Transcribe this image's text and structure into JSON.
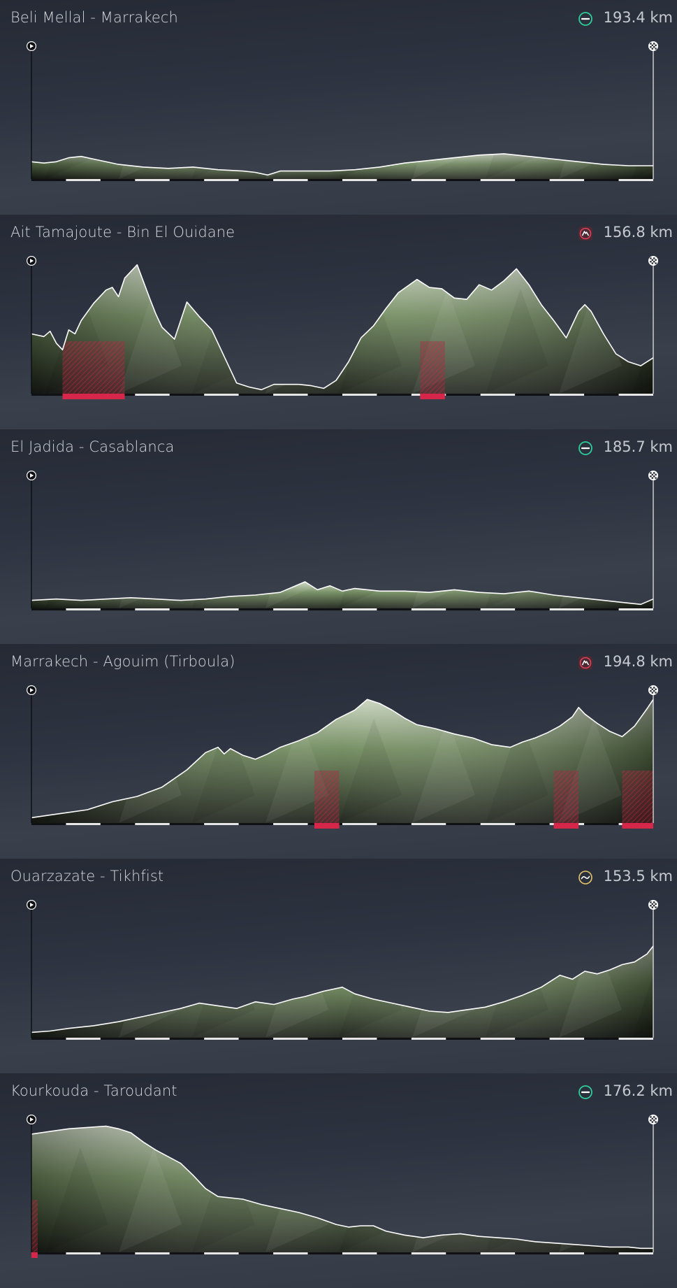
{
  "colors": {
    "background": "#2b313d",
    "flat_icon": "#2ecc9a",
    "mountain_icon": "#e0405a",
    "hilly_icon": "#e8c46a",
    "climb_marker": "#d6274a",
    "profile_top": "#c7d2bd",
    "profile_bottom": "#1c2119"
  },
  "stages": [
    {
      "name": "Beli Mellal - Marrakech",
      "distance": "193.4 km",
      "type_icon": "flat-icon",
      "climb_markers": [],
      "profile_points": [
        [
          0,
          0.13
        ],
        [
          2,
          0.12
        ],
        [
          4,
          0.13
        ],
        [
          6,
          0.16
        ],
        [
          8,
          0.17
        ],
        [
          10,
          0.15
        ],
        [
          14,
          0.11
        ],
        [
          18,
          0.09
        ],
        [
          22,
          0.08
        ],
        [
          26,
          0.09
        ],
        [
          30,
          0.07
        ],
        [
          34,
          0.06
        ],
        [
          36,
          0.05
        ],
        [
          38,
          0.03
        ],
        [
          40,
          0.06
        ],
        [
          44,
          0.06
        ],
        [
          48,
          0.06
        ],
        [
          52,
          0.07
        ],
        [
          56,
          0.09
        ],
        [
          60,
          0.12
        ],
        [
          64,
          0.14
        ],
        [
          68,
          0.16
        ],
        [
          72,
          0.18
        ],
        [
          76,
          0.19
        ],
        [
          80,
          0.17
        ],
        [
          84,
          0.15
        ],
        [
          88,
          0.13
        ],
        [
          92,
          0.11
        ],
        [
          96,
          0.1
        ],
        [
          100,
          0.1
        ]
      ]
    },
    {
      "name": "Ait Tamajoute - Bin El Ouidane",
      "distance": "156.8 km",
      "type_icon": "mountain-icon",
      "climb_markers": [
        [
          5,
          15
        ],
        [
          62.5,
          66.5
        ]
      ],
      "profile_points": [
        [
          0,
          0.45
        ],
        [
          2,
          0.43
        ],
        [
          3,
          0.47
        ],
        [
          4,
          0.38
        ],
        [
          5,
          0.33
        ],
        [
          6,
          0.48
        ],
        [
          7,
          0.45
        ],
        [
          8,
          0.55
        ],
        [
          10,
          0.68
        ],
        [
          12,
          0.78
        ],
        [
          13,
          0.8
        ],
        [
          14,
          0.73
        ],
        [
          15,
          0.87
        ],
        [
          17,
          0.97
        ],
        [
          19,
          0.72
        ],
        [
          20,
          0.6
        ],
        [
          21,
          0.5
        ],
        [
          23,
          0.41
        ],
        [
          25,
          0.69
        ],
        [
          27,
          0.58
        ],
        [
          29,
          0.48
        ],
        [
          31,
          0.28
        ],
        [
          33,
          0.08
        ],
        [
          35,
          0.05
        ],
        [
          37,
          0.03
        ],
        [
          39,
          0.07
        ],
        [
          41,
          0.07
        ],
        [
          43,
          0.07
        ],
        [
          45,
          0.06
        ],
        [
          47,
          0.04
        ],
        [
          49,
          0.1
        ],
        [
          51,
          0.24
        ],
        [
          53,
          0.42
        ],
        [
          55,
          0.51
        ],
        [
          57,
          0.64
        ],
        [
          59,
          0.76
        ],
        [
          62,
          0.86
        ],
        [
          64,
          0.8
        ],
        [
          66,
          0.79
        ],
        [
          68,
          0.72
        ],
        [
          70,
          0.71
        ],
        [
          72,
          0.82
        ],
        [
          74,
          0.78
        ],
        [
          76,
          0.85
        ],
        [
          78,
          0.94
        ],
        [
          80,
          0.82
        ],
        [
          82,
          0.67
        ],
        [
          84,
          0.55
        ],
        [
          86,
          0.42
        ],
        [
          88,
          0.62
        ],
        [
          89,
          0.67
        ],
        [
          90,
          0.62
        ],
        [
          92,
          0.45
        ],
        [
          94,
          0.3
        ],
        [
          96,
          0.24
        ],
        [
          98,
          0.21
        ],
        [
          100,
          0.27
        ]
      ]
    },
    {
      "name": "El Jadida - Casablanca",
      "distance": "185.7 km",
      "type_icon": "flat-icon",
      "climb_markers": [],
      "profile_points": [
        [
          0,
          0.06
        ],
        [
          4,
          0.07
        ],
        [
          8,
          0.06
        ],
        [
          12,
          0.07
        ],
        [
          16,
          0.08
        ],
        [
          20,
          0.07
        ],
        [
          24,
          0.06
        ],
        [
          28,
          0.07
        ],
        [
          32,
          0.09
        ],
        [
          36,
          0.1
        ],
        [
          40,
          0.12
        ],
        [
          42,
          0.16
        ],
        [
          44,
          0.2
        ],
        [
          46,
          0.14
        ],
        [
          48,
          0.17
        ],
        [
          50,
          0.13
        ],
        [
          52,
          0.15
        ],
        [
          54,
          0.14
        ],
        [
          56,
          0.13
        ],
        [
          60,
          0.13
        ],
        [
          64,
          0.12
        ],
        [
          68,
          0.14
        ],
        [
          72,
          0.12
        ],
        [
          76,
          0.11
        ],
        [
          80,
          0.13
        ],
        [
          84,
          0.1
        ],
        [
          88,
          0.08
        ],
        [
          92,
          0.06
        ],
        [
          96,
          0.04
        ],
        [
          98,
          0.03
        ],
        [
          100,
          0.07
        ]
      ]
    },
    {
      "name": "Marrakech - Agouim (Tirboula)",
      "distance": "194.8 km",
      "type_icon": "mountain-icon",
      "climb_markers": [
        [
          45.5,
          49.5
        ],
        [
          84,
          88
        ],
        [
          95,
          100
        ]
      ],
      "profile_points": [
        [
          0,
          0.04
        ],
        [
          3,
          0.06
        ],
        [
          6,
          0.08
        ],
        [
          9,
          0.1
        ],
        [
          13,
          0.16
        ],
        [
          17,
          0.2
        ],
        [
          21,
          0.27
        ],
        [
          25,
          0.4
        ],
        [
          28,
          0.53
        ],
        [
          30,
          0.57
        ],
        [
          31,
          0.52
        ],
        [
          32,
          0.56
        ],
        [
          34,
          0.51
        ],
        [
          36,
          0.48
        ],
        [
          38,
          0.52
        ],
        [
          40,
          0.57
        ],
        [
          43,
          0.62
        ],
        [
          46,
          0.68
        ],
        [
          49,
          0.78
        ],
        [
          52,
          0.85
        ],
        [
          54,
          0.93
        ],
        [
          56,
          0.9
        ],
        [
          58,
          0.85
        ],
        [
          60,
          0.79
        ],
        [
          62,
          0.74
        ],
        [
          65,
          0.71
        ],
        [
          68,
          0.67
        ],
        [
          71,
          0.64
        ],
        [
          74,
          0.59
        ],
        [
          77,
          0.57
        ],
        [
          79,
          0.61
        ],
        [
          81,
          0.64
        ],
        [
          83,
          0.68
        ],
        [
          85,
          0.73
        ],
        [
          87,
          0.8
        ],
        [
          88,
          0.87
        ],
        [
          89,
          0.82
        ],
        [
          91,
          0.75
        ],
        [
          93,
          0.69
        ],
        [
          95,
          0.65
        ],
        [
          97,
          0.73
        ],
        [
          99,
          0.86
        ],
        [
          100,
          0.93
        ]
      ]
    },
    {
      "name": "Ouarzazate - Tikhfist",
      "distance": "153.5 km",
      "type_icon": "hilly-icon",
      "climb_markers": [],
      "profile_points": [
        [
          0,
          0.04
        ],
        [
          3,
          0.05
        ],
        [
          6,
          0.07
        ],
        [
          10,
          0.09
        ],
        [
          14,
          0.12
        ],
        [
          18,
          0.16
        ],
        [
          21,
          0.19
        ],
        [
          24,
          0.22
        ],
        [
          27,
          0.26
        ],
        [
          30,
          0.24
        ],
        [
          33,
          0.22
        ],
        [
          36,
          0.27
        ],
        [
          39,
          0.25
        ],
        [
          42,
          0.29
        ],
        [
          44,
          0.31
        ],
        [
          47,
          0.35
        ],
        [
          50,
          0.38
        ],
        [
          52,
          0.33
        ],
        [
          55,
          0.29
        ],
        [
          58,
          0.26
        ],
        [
          61,
          0.23
        ],
        [
          64,
          0.2
        ],
        [
          67,
          0.19
        ],
        [
          70,
          0.21
        ],
        [
          73,
          0.23
        ],
        [
          76,
          0.27
        ],
        [
          79,
          0.32
        ],
        [
          82,
          0.38
        ],
        [
          85,
          0.47
        ],
        [
          87,
          0.44
        ],
        [
          89,
          0.5
        ],
        [
          91,
          0.48
        ],
        [
          93,
          0.51
        ],
        [
          95,
          0.55
        ],
        [
          97,
          0.57
        ],
        [
          99,
          0.63
        ],
        [
          100,
          0.69
        ]
      ]
    },
    {
      "name": "Kourkouda - Taroudant",
      "distance": "176.2 km",
      "type_icon": "flat-icon",
      "climb_markers": [
        [
          0,
          1
        ]
      ],
      "profile_points": [
        [
          0,
          0.89
        ],
        [
          3,
          0.91
        ],
        [
          6,
          0.93
        ],
        [
          9,
          0.94
        ],
        [
          12,
          0.95
        ],
        [
          14,
          0.93
        ],
        [
          16,
          0.9
        ],
        [
          18,
          0.83
        ],
        [
          20,
          0.77
        ],
        [
          22,
          0.72
        ],
        [
          24,
          0.67
        ],
        [
          26,
          0.58
        ],
        [
          28,
          0.48
        ],
        [
          30,
          0.42
        ],
        [
          32,
          0.41
        ],
        [
          34,
          0.4
        ],
        [
          37,
          0.36
        ],
        [
          40,
          0.33
        ],
        [
          43,
          0.3
        ],
        [
          46,
          0.26
        ],
        [
          49,
          0.21
        ],
        [
          51,
          0.19
        ],
        [
          53,
          0.2
        ],
        [
          55,
          0.2
        ],
        [
          57,
          0.16
        ],
        [
          60,
          0.13
        ],
        [
          63,
          0.11
        ],
        [
          66,
          0.13
        ],
        [
          69,
          0.14
        ],
        [
          72,
          0.12
        ],
        [
          75,
          0.11
        ],
        [
          78,
          0.1
        ],
        [
          81,
          0.08
        ],
        [
          84,
          0.07
        ],
        [
          87,
          0.06
        ],
        [
          90,
          0.05
        ],
        [
          93,
          0.04
        ],
        [
          96,
          0.04
        ],
        [
          98,
          0.03
        ],
        [
          100,
          0.03
        ]
      ]
    }
  ]
}
